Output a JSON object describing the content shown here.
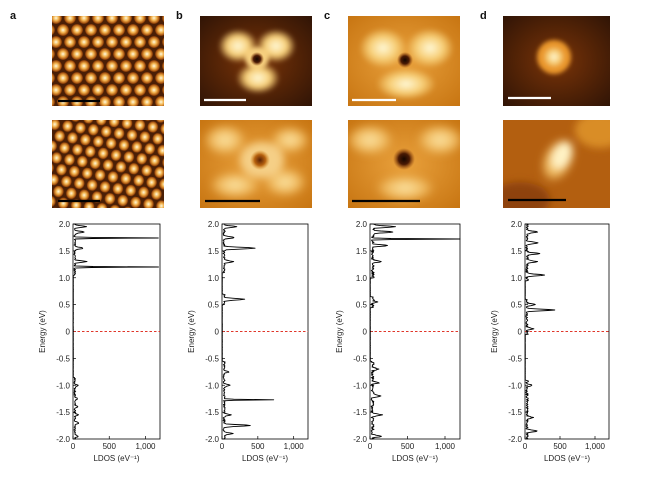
{
  "figure": {
    "panel_labels": [
      "a",
      "b",
      "c",
      "d"
    ]
  },
  "colors": {
    "line": "#000000",
    "fermi_line": "#e0362a",
    "stm_dark": "#2b1205",
    "stm_mid": "#c96a12",
    "stm_bright": "#fff6c8"
  },
  "chart_data": [
    {
      "type": "line",
      "panel": "a",
      "xlabel": "LDOS (eV⁻¹)",
      "ylabel": "Energy (eV)",
      "xlim": [
        0,
        1200
      ],
      "ylim": [
        -2.0,
        2.0
      ],
      "xticks": [
        "0",
        "500",
        "1,000"
      ],
      "yticks": [
        "-2.0",
        "-1.5",
        "-1.0",
        "-0.5",
        "0",
        "0.5",
        "1.0",
        "1.5",
        "2.0"
      ],
      "reference_line": {
        "y": 0,
        "style": "dashed"
      },
      "series": [
        {
          "name": "LDOS",
          "baseline": 25,
          "noise": 12,
          "features": [
            [
              -1.95,
              45
            ],
            [
              -1.7,
              55
            ],
            [
              -1.55,
              50
            ],
            [
              -1.4,
              45
            ],
            [
              -1.25,
              40
            ],
            [
              -1.0,
              40
            ],
            [
              1.2,
              1150
            ],
            [
              1.3,
              160
            ],
            [
              1.55,
              120
            ],
            [
              1.74,
              1160
            ],
            [
              1.85,
              140
            ],
            [
              1.95,
              160
            ]
          ],
          "gaps": [
            [
              -0.85,
              1.05
            ]
          ]
        }
      ]
    },
    {
      "type": "line",
      "panel": "b",
      "xlabel": "LDOS (eV⁻¹)",
      "ylabel": "Energy (eV)",
      "xlim": [
        0,
        1200
      ],
      "ylim": [
        -2.0,
        2.0
      ],
      "xticks": [
        "0",
        "500",
        "1,000"
      ],
      "yticks": [
        "-2.0",
        "-1.5",
        "-1.0",
        "-0.5",
        "0",
        "0.5",
        "1.0",
        "1.5",
        "2.0"
      ],
      "reference_line": {
        "y": 0,
        "style": "dashed"
      },
      "series": [
        {
          "name": "LDOS",
          "baseline": 30,
          "noise": 15,
          "features": [
            [
              -1.9,
              120
            ],
            [
              -1.75,
              380
            ],
            [
              -1.55,
              90
            ],
            [
              -1.27,
              700
            ],
            [
              -1.0,
              80
            ],
            [
              -0.75,
              70
            ],
            [
              0.6,
              280
            ],
            [
              1.3,
              120
            ],
            [
              1.55,
              430
            ],
            [
              1.75,
              150
            ],
            [
              1.95,
              180
            ]
          ],
          "gaps": [
            [
              -0.55,
              0.5
            ],
            [
              0.7,
              1.1
            ]
          ]
        }
      ]
    },
    {
      "type": "line",
      "panel": "c",
      "xlabel": "LDOS (eV⁻¹)",
      "ylabel": "Energy (eV)",
      "xlim": [
        0,
        1200
      ],
      "ylim": [
        -2.0,
        2.0
      ],
      "xticks": [
        "0",
        "500",
        "1,000"
      ],
      "yticks": [
        "-2.0",
        "-1.5",
        "-1.0",
        "-0.5",
        "0",
        "0.5",
        "1.0",
        "1.5",
        "2.0"
      ],
      "reference_line": {
        "y": 0,
        "style": "dashed"
      },
      "series": [
        {
          "name": "LDOS",
          "baseline": 35,
          "noise": 20,
          "features": [
            [
              -1.95,
              110
            ],
            [
              -1.55,
              120
            ],
            [
              -1.2,
              130
            ],
            [
              -0.95,
              90
            ],
            [
              -0.7,
              80
            ],
            [
              0.55,
              60
            ],
            [
              1.3,
              120
            ],
            [
              1.6,
              200
            ],
            [
              1.72,
              1200
            ],
            [
              1.85,
              280
            ],
            [
              1.95,
              300
            ]
          ],
          "gaps": [
            [
              -0.55,
              0.45
            ],
            [
              0.65,
              1.0
            ]
          ]
        }
      ]
    },
    {
      "type": "line",
      "panel": "d",
      "xlabel": "LDOS (eV⁻¹)",
      "ylabel": "Energy (eV)",
      "xlim": [
        0,
        1200
      ],
      "ylim": [
        -2.0,
        2.0
      ],
      "xticks": [
        "0",
        "500",
        "1,000"
      ],
      "yticks": [
        "-2.0",
        "-1.5",
        "-1.0",
        "-0.5",
        "0",
        "0.5",
        "1.0",
        "1.5",
        "2.0"
      ],
      "reference_line": {
        "y": 0,
        "style": "dashed"
      },
      "series": [
        {
          "name": "LDOS",
          "baseline": 30,
          "noise": 18,
          "features": [
            [
              -1.85,
              160
            ],
            [
              -1.6,
              80
            ],
            [
              -1.0,
              60
            ],
            [
              0.05,
              90
            ],
            [
              0.4,
              380
            ],
            [
              0.5,
              120
            ],
            [
              1.05,
              260
            ],
            [
              1.3,
              140
            ],
            [
              1.45,
              170
            ],
            [
              1.65,
              160
            ],
            [
              1.85,
              150
            ]
          ],
          "gaps": [
            [
              -0.9,
              -0.05
            ],
            [
              0.6,
              0.95
            ]
          ]
        }
      ]
    }
  ]
}
